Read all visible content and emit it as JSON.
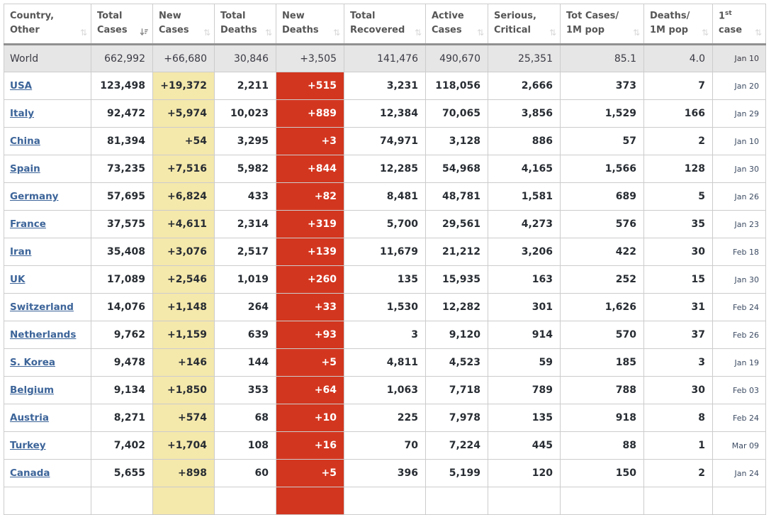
{
  "table": {
    "columns": [
      {
        "line1": "Country,",
        "line2": "Other",
        "sort": "none"
      },
      {
        "line1": "Total",
        "line2": "Cases",
        "sort": "desc"
      },
      {
        "line1": "New",
        "line2": "Cases",
        "sort": "none"
      },
      {
        "line1": "Total",
        "line2": "Deaths",
        "sort": "none"
      },
      {
        "line1": "New",
        "line2": "Deaths",
        "sort": "none"
      },
      {
        "line1": "Total",
        "line2": "Recovered",
        "sort": "none"
      },
      {
        "line1": "Active",
        "line2": "Cases",
        "sort": "none"
      },
      {
        "line1": "Serious,",
        "line2": "Critical",
        "sort": "none"
      },
      {
        "line1": "Tot Cases/",
        "line2": "1M pop",
        "sort": "none"
      },
      {
        "line1": "Deaths/",
        "line2": "1M pop",
        "sort": "none"
      },
      {
        "line1": "1",
        "line1_sup": "st",
        "line2": "case",
        "sort": "none"
      }
    ],
    "rows": [
      {
        "country": "World",
        "is_world": true,
        "total_cases": "662,992",
        "new_cases": "+66,680",
        "total_deaths": "30,846",
        "new_deaths": "+3,505",
        "total_recovered": "141,476",
        "active_cases": "490,670",
        "serious_critical": "25,351",
        "tot_cases_1m": "85.1",
        "deaths_1m": "4.0",
        "first_case": "Jan 10"
      },
      {
        "country": "USA",
        "total_cases": "123,498",
        "new_cases": "+19,372",
        "total_deaths": "2,211",
        "new_deaths": "+515",
        "total_recovered": "3,231",
        "active_cases": "118,056",
        "serious_critical": "2,666",
        "tot_cases_1m": "373",
        "deaths_1m": "7",
        "first_case": "Jan 20"
      },
      {
        "country": "Italy",
        "total_cases": "92,472",
        "new_cases": "+5,974",
        "total_deaths": "10,023",
        "new_deaths": "+889",
        "total_recovered": "12,384",
        "active_cases": "70,065",
        "serious_critical": "3,856",
        "tot_cases_1m": "1,529",
        "deaths_1m": "166",
        "first_case": "Jan 29"
      },
      {
        "country": "China",
        "total_cases": "81,394",
        "new_cases": "+54",
        "total_deaths": "3,295",
        "new_deaths": "+3",
        "total_recovered": "74,971",
        "active_cases": "3,128",
        "serious_critical": "886",
        "tot_cases_1m": "57",
        "deaths_1m": "2",
        "first_case": "Jan 10"
      },
      {
        "country": "Spain",
        "total_cases": "73,235",
        "new_cases": "+7,516",
        "total_deaths": "5,982",
        "new_deaths": "+844",
        "total_recovered": "12,285",
        "active_cases": "54,968",
        "serious_critical": "4,165",
        "tot_cases_1m": "1,566",
        "deaths_1m": "128",
        "first_case": "Jan 30"
      },
      {
        "country": "Germany",
        "total_cases": "57,695",
        "new_cases": "+6,824",
        "total_deaths": "433",
        "new_deaths": "+82",
        "total_recovered": "8,481",
        "active_cases": "48,781",
        "serious_critical": "1,581",
        "tot_cases_1m": "689",
        "deaths_1m": "5",
        "first_case": "Jan 26"
      },
      {
        "country": "France",
        "total_cases": "37,575",
        "new_cases": "+4,611",
        "total_deaths": "2,314",
        "new_deaths": "+319",
        "total_recovered": "5,700",
        "active_cases": "29,561",
        "serious_critical": "4,273",
        "tot_cases_1m": "576",
        "deaths_1m": "35",
        "first_case": "Jan 23"
      },
      {
        "country": "Iran",
        "total_cases": "35,408",
        "new_cases": "+3,076",
        "total_deaths": "2,517",
        "new_deaths": "+139",
        "total_recovered": "11,679",
        "active_cases": "21,212",
        "serious_critical": "3,206",
        "tot_cases_1m": "422",
        "deaths_1m": "30",
        "first_case": "Feb 18"
      },
      {
        "country": "UK",
        "total_cases": "17,089",
        "new_cases": "+2,546",
        "total_deaths": "1,019",
        "new_deaths": "+260",
        "total_recovered": "135",
        "active_cases": "15,935",
        "serious_critical": "163",
        "tot_cases_1m": "252",
        "deaths_1m": "15",
        "first_case": "Jan 30"
      },
      {
        "country": "Switzerland",
        "total_cases": "14,076",
        "new_cases": "+1,148",
        "total_deaths": "264",
        "new_deaths": "+33",
        "total_recovered": "1,530",
        "active_cases": "12,282",
        "serious_critical": "301",
        "tot_cases_1m": "1,626",
        "deaths_1m": "31",
        "first_case": "Feb 24"
      },
      {
        "country": "Netherlands",
        "total_cases": "9,762",
        "new_cases": "+1,159",
        "total_deaths": "639",
        "new_deaths": "+93",
        "total_recovered": "3",
        "active_cases": "9,120",
        "serious_critical": "914",
        "tot_cases_1m": "570",
        "deaths_1m": "37",
        "first_case": "Feb 26"
      },
      {
        "country": "S. Korea",
        "total_cases": "9,478",
        "new_cases": "+146",
        "total_deaths": "144",
        "new_deaths": "+5",
        "total_recovered": "4,811",
        "active_cases": "4,523",
        "serious_critical": "59",
        "tot_cases_1m": "185",
        "deaths_1m": "3",
        "first_case": "Jan 19"
      },
      {
        "country": "Belgium",
        "total_cases": "9,134",
        "new_cases": "+1,850",
        "total_deaths": "353",
        "new_deaths": "+64",
        "total_recovered": "1,063",
        "active_cases": "7,718",
        "serious_critical": "789",
        "tot_cases_1m": "788",
        "deaths_1m": "30",
        "first_case": "Feb 03"
      },
      {
        "country": "Austria",
        "total_cases": "8,271",
        "new_cases": "+574",
        "total_deaths": "68",
        "new_deaths": "+10",
        "total_recovered": "225",
        "active_cases": "7,978",
        "serious_critical": "135",
        "tot_cases_1m": "918",
        "deaths_1m": "8",
        "first_case": "Feb 24"
      },
      {
        "country": "Turkey",
        "total_cases": "7,402",
        "new_cases": "+1,704",
        "total_deaths": "108",
        "new_deaths": "+16",
        "total_recovered": "70",
        "active_cases": "7,224",
        "serious_critical": "445",
        "tot_cases_1m": "88",
        "deaths_1m": "1",
        "first_case": "Mar 09"
      },
      {
        "country": "Canada",
        "total_cases": "5,655",
        "new_cases": "+898",
        "total_deaths": "60",
        "new_deaths": "+5",
        "total_recovered": "396",
        "active_cases": "5,199",
        "serious_critical": "120",
        "tot_cases_1m": "150",
        "deaths_1m": "2",
        "first_case": "Jan 24"
      },
      {
        "country": "",
        "partial": true,
        "total_cases": "",
        "new_cases": "",
        "total_deaths": "",
        "new_deaths": "",
        "total_recovered": "",
        "active_cases": "",
        "serious_critical": "",
        "tot_cases_1m": "",
        "deaths_1m": "",
        "first_case": ""
      }
    ]
  },
  "colors": {
    "new_cases_bg": "#f4e8ab",
    "new_deaths_bg": "#d3361f",
    "world_row_bg": "#e6e6e6",
    "link_color": "#3c6499",
    "header_text": "#565656"
  },
  "icons": {
    "sort_inactive": "sort-both-icon",
    "sort_active": "sort-desc-icon"
  }
}
